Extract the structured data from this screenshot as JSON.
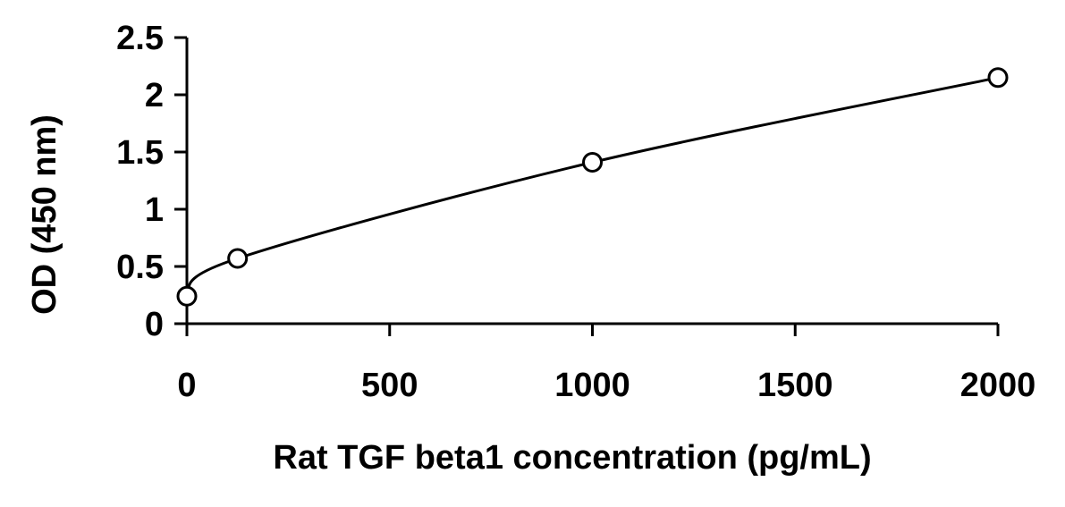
{
  "chart_data": {
    "type": "scatter",
    "title": "",
    "xlabel": "Rat TGF beta1 concentration (pg/mL)",
    "ylabel": "OD (450 nm)",
    "xlim": [
      0,
      2000
    ],
    "ylim": [
      0,
      2.5
    ],
    "xticks": [
      0,
      500,
      1000,
      1500,
      2000
    ],
    "yticks": [
      0,
      0.5,
      1,
      1.5,
      2,
      2.5
    ],
    "xtick_labels": [
      "0",
      "500",
      "1000",
      "1500",
      "2000"
    ],
    "ytick_labels": [
      "0",
      "0.5",
      "1",
      "1.5",
      "2",
      "2.5"
    ],
    "grid": false,
    "legend": "none",
    "curve": "smooth fit through points",
    "points": [
      {
        "x": 0,
        "y": 0.24
      },
      {
        "x": 125,
        "y": 0.57
      },
      {
        "x": 1000,
        "y": 1.41
      },
      {
        "x": 2000,
        "y": 2.15
      }
    ],
    "colors": {
      "line": "#000000",
      "marker_fill": "#ffffff",
      "marker_stroke": "#000000"
    }
  }
}
